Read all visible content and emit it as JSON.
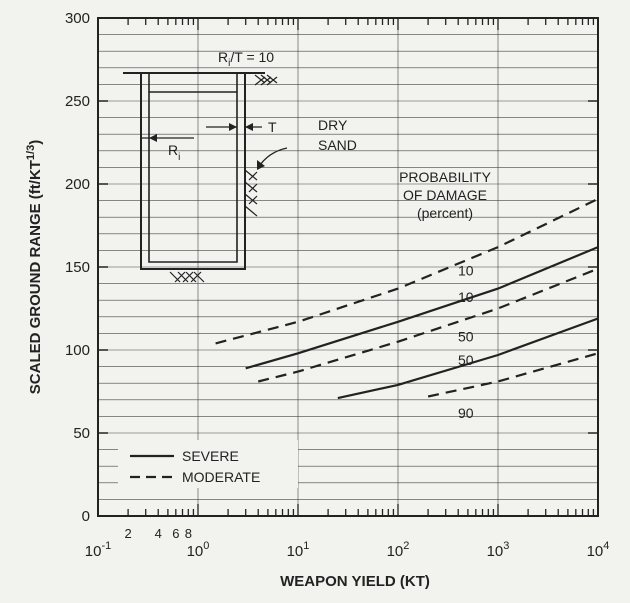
{
  "chart_data": {
    "type": "line",
    "xscale": "log",
    "xlim": [
      0.1,
      10000
    ],
    "ylim": [
      0,
      300
    ],
    "xlabel": "WEAPON YIELD (KT)",
    "ylabel_main": "SCALED GROUND RANGE (ft/KT",
    "ylabel_sup": "1/3",
    "ylabel_end": ")",
    "y_ticks": [
      "0",
      "50",
      "100",
      "150",
      "200",
      "250",
      "300"
    ],
    "x_decade_ticks": [
      {
        "base": "10",
        "exp": "-1"
      },
      {
        "base": "10",
        "exp": "0"
      },
      {
        "base": "10",
        "exp": "1"
      },
      {
        "base": "10",
        "exp": "2"
      },
      {
        "base": "10",
        "exp": "3"
      },
      {
        "base": "10",
        "exp": "4"
      }
    ],
    "x_minor_labels": [
      "2",
      "4",
      "6",
      "8"
    ],
    "grid": true,
    "series": [
      {
        "name": "SEVERE",
        "style": "solid",
        "x": [
          3,
          10,
          100,
          1000,
          10000
        ],
        "y": [
          89,
          98,
          117,
          137,
          162
        ]
      },
      {
        "name": "SEVERE",
        "style": "solid",
        "x": [
          25,
          100,
          1000,
          10000
        ],
        "y": [
          71,
          79,
          97,
          119
        ]
      },
      {
        "name": "MODERATE",
        "style": "dashed",
        "x": [
          1.5,
          10,
          100,
          1000,
          10000
        ],
        "y": [
          104,
          117,
          137,
          162,
          191
        ]
      },
      {
        "name": "MODERATE",
        "style": "dashed",
        "x": [
          4,
          10,
          100,
          1000,
          10000
        ],
        "y": [
          81,
          87,
          105,
          125,
          149
        ]
      },
      {
        "name": "MODERATE",
        "style": "dashed",
        "x": [
          200,
          1000,
          10000
        ],
        "y": [
          72,
          81,
          98
        ]
      }
    ],
    "curve_labels": [
      {
        "text": "10",
        "x": 1000,
        "y": 148,
        "note": "upper dashed"
      },
      {
        "text": "10",
        "x": 1000,
        "y": 132,
        "note": "upper solid"
      },
      {
        "text": "50",
        "x": 1000,
        "y": 108
      },
      {
        "text": "50",
        "x": 1000,
        "y": 94
      },
      {
        "text": "90",
        "x": 1000,
        "y": 62
      }
    ],
    "legend": {
      "position": "bottom-left",
      "severe": "SEVERE",
      "moderate": "MODERATE"
    },
    "annotations": {
      "prob_line1": "PROBABILITY",
      "prob_line2": "OF DAMAGE",
      "prob_line3": "(percent)",
      "ratio_R": "R",
      "ratio_sub": "i",
      "ratio_rest": "/T = 10",
      "dry": "DRY",
      "sand": "SAND",
      "t_label": "T",
      "ri_R": "R",
      "ri_sub": "i"
    }
  }
}
